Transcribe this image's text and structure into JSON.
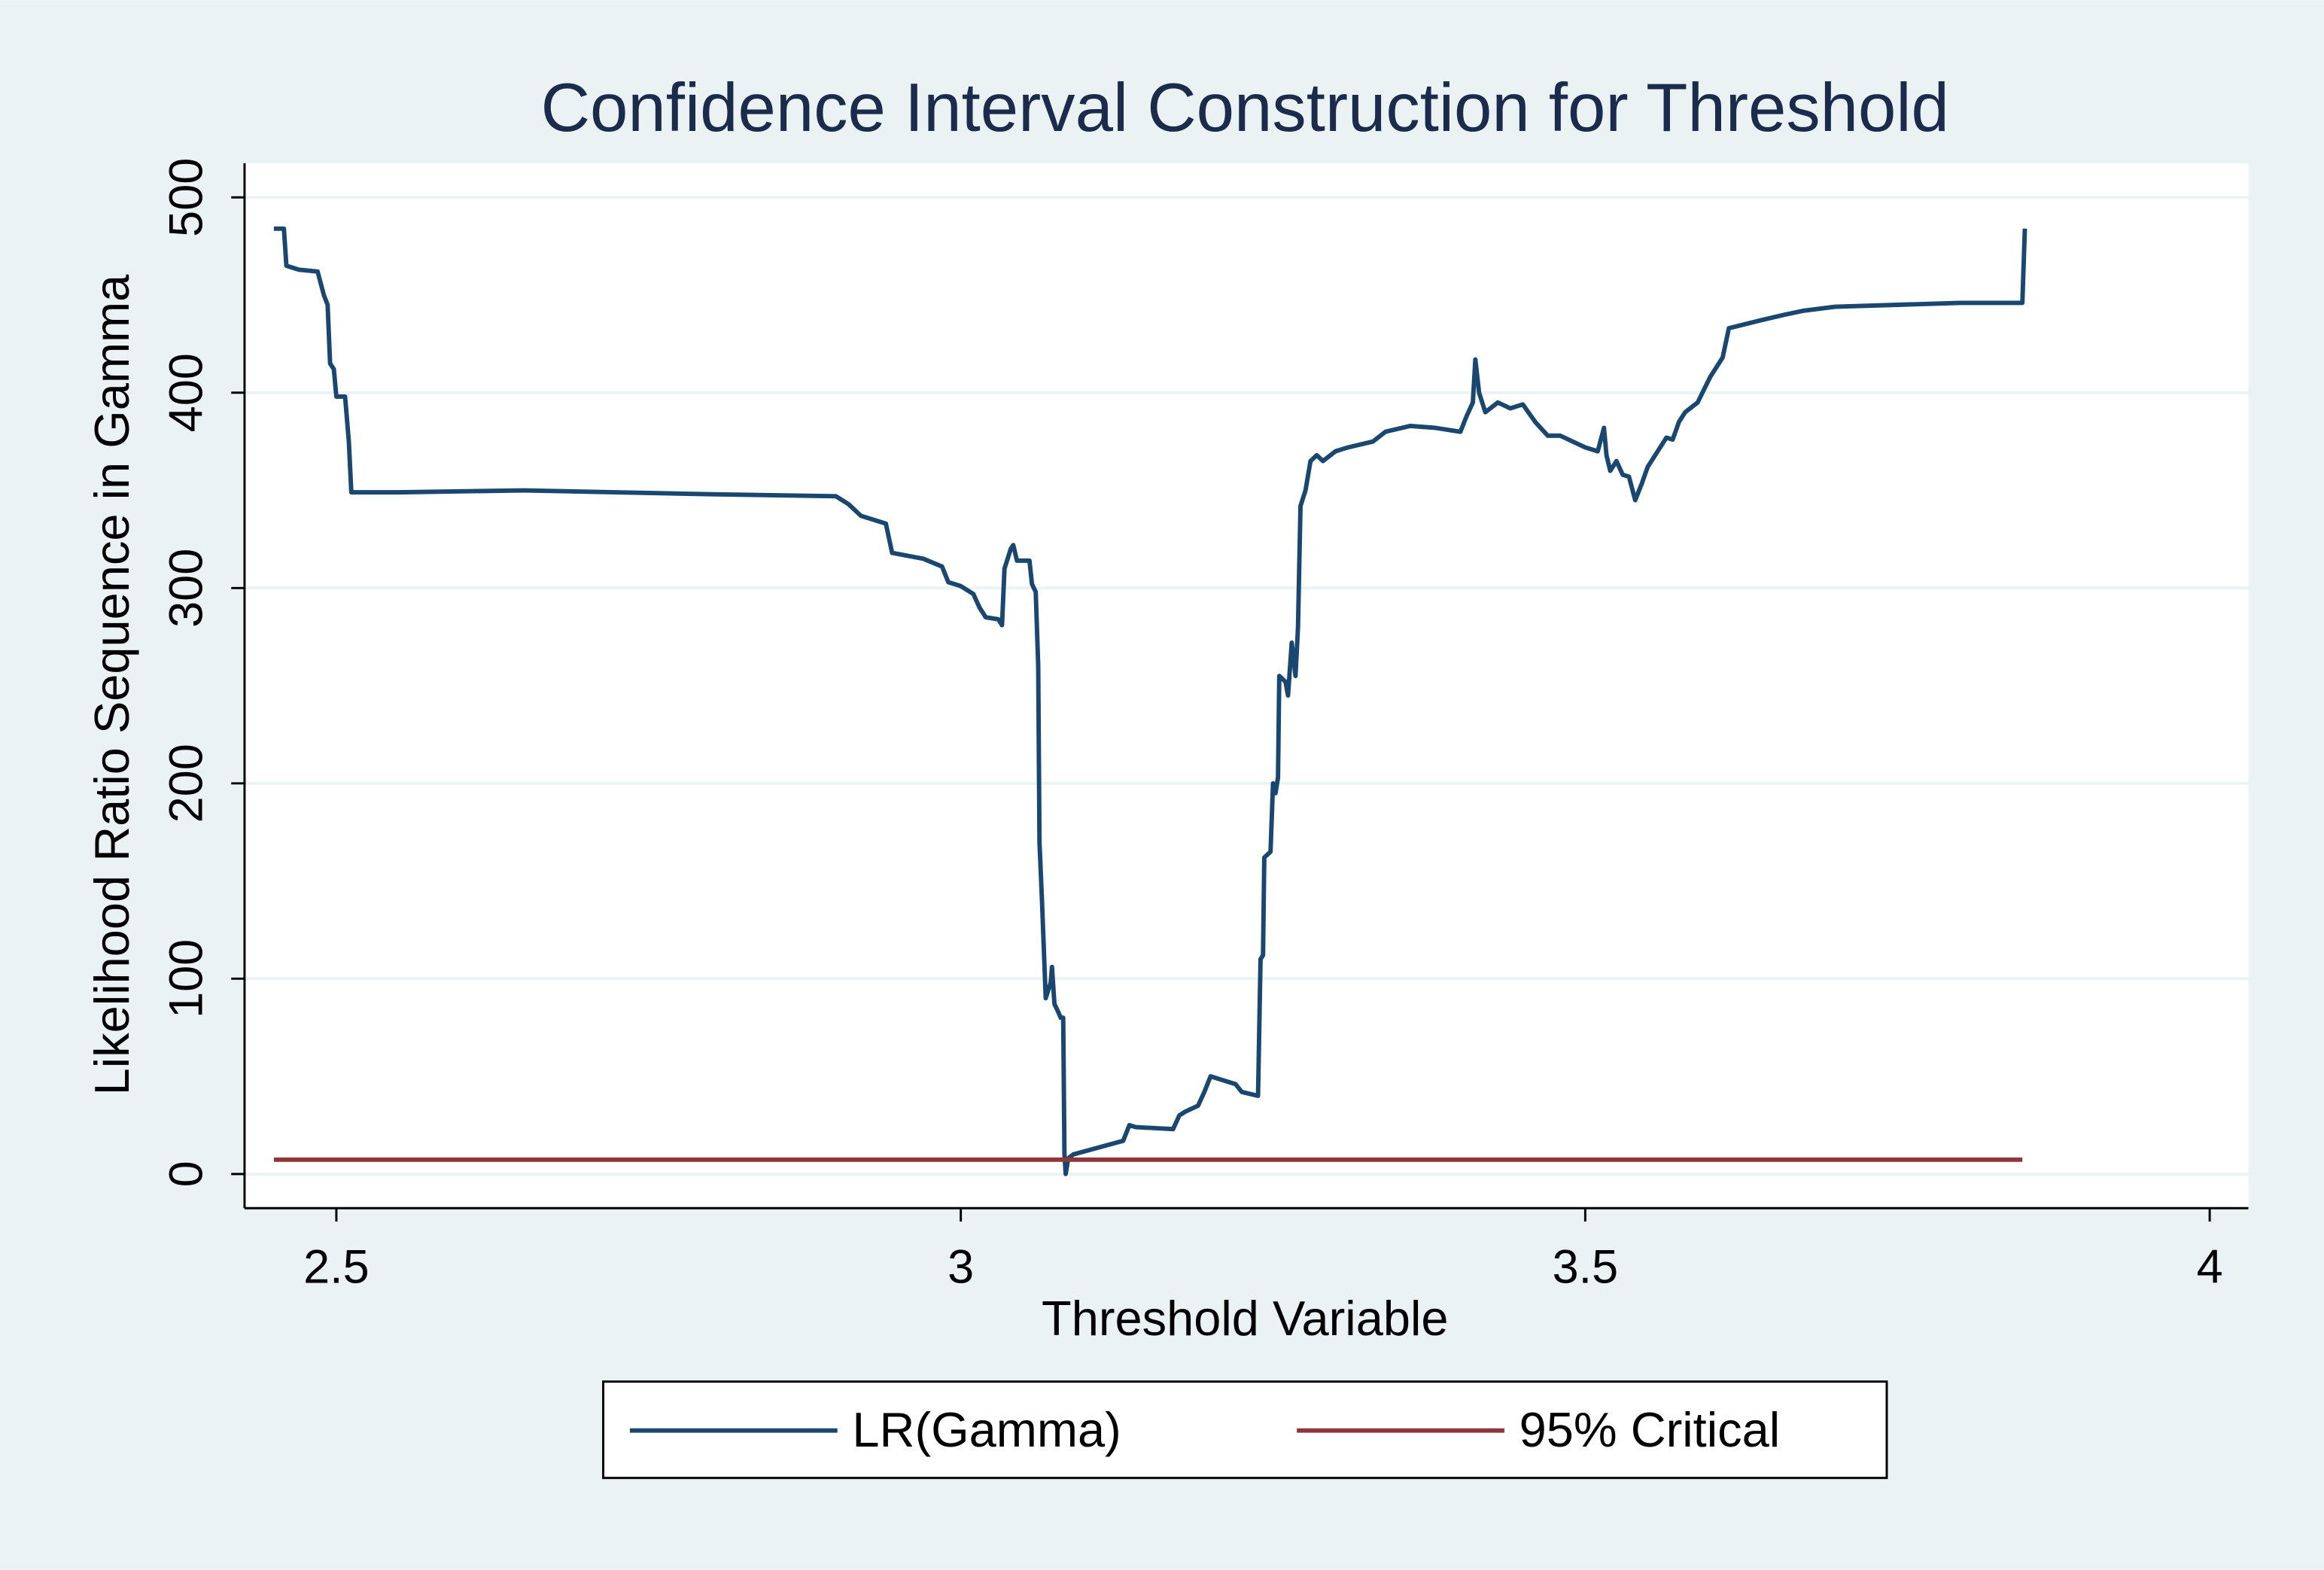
{
  "chart_data": {
    "type": "line",
    "title": "Confidence Interval Construction for Threshold",
    "xlabel": "Threshold Variable",
    "ylabel": "Likelihood Ratio Sequence in Gamma",
    "xlim": [
      2.4265,
      4.031
    ],
    "xticks": [
      2.5,
      3,
      3.5,
      4
    ],
    "ylim": [
      -17.5,
      517.5
    ],
    "yticks": [
      0,
      100,
      200,
      300,
      400,
      500
    ],
    "grid": true,
    "legend": "bottom",
    "series": [
      {
        "name": "LR(Gamma)",
        "color": "#1a476f",
        "x": [
          2.45,
          2.458,
          2.46,
          2.47,
          2.485,
          2.49,
          2.493,
          2.495,
          2.498,
          2.5,
          2.507,
          2.51,
          2.512,
          2.55,
          2.65,
          2.8,
          2.9,
          2.91,
          2.92,
          2.94,
          2.945,
          2.97,
          2.985,
          2.99,
          3.0,
          3.01,
          3.015,
          3.02,
          3.03,
          3.033,
          3.035,
          3.04,
          3.042,
          3.045,
          3.055,
          3.057,
          3.06,
          3.062,
          3.063,
          3.065,
          3.068,
          3.072,
          3.073,
          3.075,
          3.078,
          3.08,
          3.082,
          3.083,
          3.084,
          3.086,
          3.09,
          3.13,
          3.135,
          3.14,
          3.17,
          3.175,
          3.18,
          3.19,
          3.195,
          3.2,
          3.21,
          3.22,
          3.225,
          3.238,
          3.24,
          3.242,
          3.243,
          3.248,
          3.25,
          3.252,
          3.254,
          3.255,
          3.26,
          3.262,
          3.265,
          3.268,
          3.27,
          3.272,
          3.276,
          3.28,
          3.285,
          3.29,
          3.3,
          3.31,
          3.33,
          3.34,
          3.36,
          3.38,
          3.4,
          3.405,
          3.41,
          3.412,
          3.415,
          3.42,
          3.43,
          3.44,
          3.45,
          3.46,
          3.47,
          3.48,
          3.49,
          3.5,
          3.51,
          3.515,
          3.517,
          3.52,
          3.525,
          3.53,
          3.535,
          3.54,
          3.545,
          3.55,
          3.56,
          3.565,
          3.57,
          3.575,
          3.58,
          3.59,
          3.6,
          3.61,
          3.615,
          3.64,
          3.66,
          3.675,
          3.7,
          3.75,
          3.8,
          3.85,
          3.852
        ],
        "values": [
          484,
          484,
          465,
          463,
          462,
          450,
          445,
          415,
          412,
          398,
          398,
          375,
          349,
          349,
          350,
          348,
          347,
          343,
          337,
          333,
          318,
          315,
          311,
          303,
          301,
          297,
          290,
          285,
          284,
          281,
          310,
          320,
          322,
          314,
          314,
          302,
          298,
          260,
          170,
          140,
          90,
          98,
          106,
          87,
          83,
          80,
          80,
          10,
          0,
          8,
          10,
          17,
          25,
          24,
          23,
          30,
          32,
          35,
          42,
          50,
          48,
          46,
          42,
          40,
          110,
          112,
          162,
          165,
          200,
          195,
          203,
          255,
          252,
          245,
          272,
          255,
          280,
          342,
          350,
          365,
          368,
          365,
          370,
          372,
          375,
          380,
          383,
          382,
          380,
          388,
          395,
          417,
          400,
          390,
          395,
          392,
          394,
          385,
          378,
          378,
          375,
          372,
          370,
          382,
          368,
          360,
          365,
          358,
          357,
          345,
          353,
          362,
          372,
          377,
          376,
          385,
          390,
          395,
          408,
          418,
          433,
          437,
          440,
          442,
          444,
          445,
          446,
          446,
          484
        ]
      },
      {
        "name": "95% Critical",
        "color": "#90353b",
        "x": [
          2.45,
          3.85
        ],
        "values": [
          7.35,
          7.35
        ]
      }
    ]
  }
}
